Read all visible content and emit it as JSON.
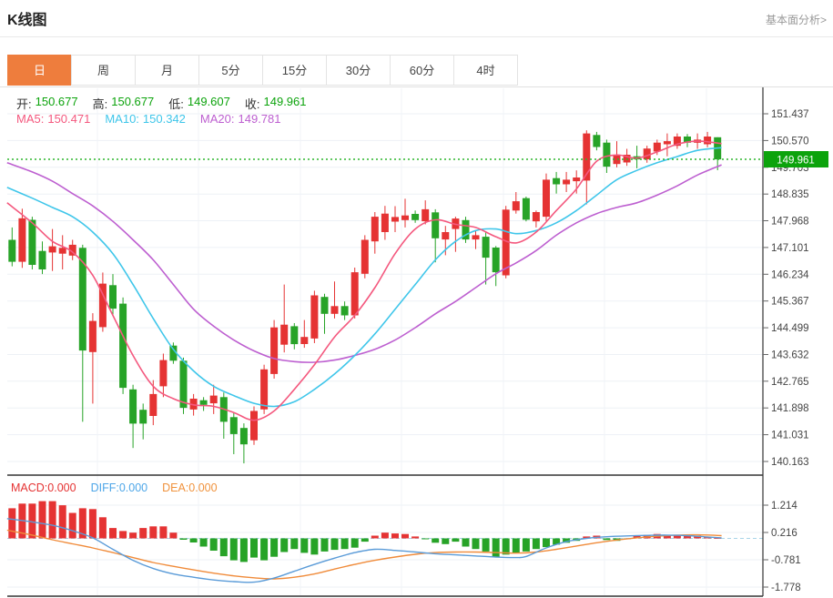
{
  "header": {
    "title": "K线图",
    "link": "基本面分析>"
  },
  "tabs": {
    "items": [
      "日",
      "周",
      "月",
      "5分",
      "15分",
      "30分",
      "60分",
      "4时"
    ],
    "active_index": 0
  },
  "legend": {
    "open_label": "开:",
    "open": "150.677",
    "high_label": "高:",
    "high": "150.677",
    "low_label": "低:",
    "low": "149.607",
    "close_label": "收:",
    "close": "149.961",
    "ma5_label": "MA5:",
    "ma5": "150.471",
    "ma10_label": "MA10:",
    "ma10": "150.342",
    "ma20_label": "MA20:",
    "ma20": "149.781"
  },
  "macd_legend": {
    "macd_label": "MACD:",
    "macd": "0.000",
    "diff_label": "DIFF:",
    "diff": "0.000",
    "dea_label": "DEA:",
    "dea": "0.000"
  },
  "price_marker": {
    "value": "149.961",
    "price": 149.961
  },
  "colors": {
    "up": "#e53333",
    "down": "#27a327",
    "ma5": "#f4587e",
    "ma10": "#3fc6ea",
    "ma20": "#bd5fd0",
    "diff_line": "#5a9bd8",
    "dea_line": "#f08b3a",
    "accent_tab": "#ee7d3d",
    "price_badge": "#0ca30c",
    "dotted_price_line": "#2db52d",
    "grid": "#edf1f6",
    "axis_line": "#333333",
    "axis_text": "#444444",
    "zero_dash": "#a8d4e8"
  },
  "chart_data": {
    "type": "candlestick+macd",
    "main": {
      "y_ticks": [
        "151.437",
        "150.570",
        "149.703",
        "148.835",
        "147.968",
        "147.101",
        "146.234",
        "145.367",
        "144.499",
        "143.632",
        "142.765",
        "141.898",
        "141.031",
        "140.163"
      ],
      "current_price": 149.961,
      "candles": [
        [
          147.35,
          147.75,
          146.49,
          146.64
        ],
        [
          146.64,
          148.36,
          146.44,
          148.05
        ],
        [
          148.0,
          148.1,
          146.39,
          146.54
        ],
        [
          146.99,
          147.3,
          146.24,
          146.39
        ],
        [
          146.94,
          147.7,
          146.34,
          147.14
        ],
        [
          146.9,
          147.5,
          146.39,
          147.09
        ],
        [
          146.84,
          147.35,
          146.69,
          147.19
        ],
        [
          147.09,
          147.19,
          141.45,
          143.76
        ],
        [
          143.71,
          144.97,
          142.04,
          144.72
        ],
        [
          144.52,
          146.29,
          144.37,
          145.93
        ],
        [
          145.88,
          146.24,
          144.87,
          145.12
        ],
        [
          145.28,
          145.48,
          142.35,
          142.55
        ],
        [
          142.5,
          142.65,
          140.6,
          141.39
        ],
        [
          141.84,
          142.04,
          140.88,
          141.39
        ],
        [
          141.64,
          142.8,
          141.34,
          142.35
        ],
        [
          142.6,
          143.66,
          142.25,
          143.45
        ],
        [
          143.92,
          144.02,
          143.33,
          143.43
        ],
        [
          143.43,
          143.53,
          141.7,
          141.9
        ],
        [
          141.85,
          142.35,
          141.65,
          142.2
        ],
        [
          142.15,
          142.25,
          141.8,
          142.0
        ],
        [
          142.05,
          142.65,
          141.7,
          142.3
        ],
        [
          142.25,
          142.4,
          140.9,
          141.45
        ],
        [
          141.6,
          141.75,
          140.4,
          141.05
        ],
        [
          141.25,
          141.4,
          140.1,
          140.72
        ],
        [
          140.85,
          141.95,
          140.7,
          141.8
        ],
        [
          141.85,
          143.3,
          141.7,
          143.15
        ],
        [
          143.0,
          144.75,
          142.85,
          144.51
        ],
        [
          143.95,
          145.9,
          143.7,
          144.6
        ],
        [
          144.55,
          144.65,
          143.8,
          143.97
        ],
        [
          143.97,
          144.75,
          143.85,
          144.2
        ],
        [
          144.15,
          145.7,
          144.0,
          145.55
        ],
        [
          145.5,
          145.6,
          144.3,
          144.95
        ],
        [
          144.95,
          146.0,
          144.8,
          145.2
        ],
        [
          145.2,
          145.35,
          144.75,
          144.9
        ],
        [
          144.9,
          146.45,
          144.8,
          146.3
        ],
        [
          146.25,
          147.5,
          146.1,
          147.35
        ],
        [
          147.3,
          148.25,
          146.9,
          148.1
        ],
        [
          147.6,
          148.45,
          147.35,
          148.2
        ],
        [
          147.94,
          148.44,
          147.6,
          148.09
        ],
        [
          147.99,
          148.68,
          147.75,
          148.14
        ],
        [
          148.19,
          148.3,
          147.9,
          147.99
        ],
        [
          147.95,
          148.63,
          147.85,
          148.34
        ],
        [
          148.24,
          148.34,
          146.62,
          147.4
        ],
        [
          147.36,
          147.8,
          146.85,
          147.6
        ],
        [
          147.7,
          148.1,
          146.96,
          148.04
        ],
        [
          147.99,
          148.1,
          147.25,
          147.36
        ],
        [
          147.36,
          147.65,
          147.05,
          147.5
        ],
        [
          147.45,
          147.6,
          145.9,
          146.77
        ],
        [
          147.1,
          147.15,
          145.85,
          146.3
        ],
        [
          146.2,
          148.45,
          146.1,
          148.33
        ],
        [
          148.3,
          148.9,
          148.2,
          148.6
        ],
        [
          148.7,
          148.75,
          147.95,
          148.0
        ],
        [
          147.95,
          148.3,
          147.75,
          148.25
        ],
        [
          148.1,
          149.5,
          147.95,
          149.3
        ],
        [
          149.35,
          149.55,
          148.85,
          149.15
        ],
        [
          149.15,
          149.55,
          148.9,
          149.3
        ],
        [
          149.25,
          149.6,
          148.85,
          149.37
        ],
        [
          149.27,
          150.9,
          148.5,
          150.8
        ],
        [
          150.75,
          150.85,
          150.25,
          150.36
        ],
        [
          150.5,
          150.6,
          149.52,
          149.72
        ],
        [
          149.81,
          150.55,
          149.7,
          150.11
        ],
        [
          149.86,
          150.3,
          149.75,
          150.11
        ],
        [
          150.06,
          150.4,
          149.67,
          149.96
        ],
        [
          149.96,
          150.4,
          149.85,
          150.31
        ],
        [
          150.21,
          150.6,
          150.1,
          150.5
        ],
        [
          150.45,
          150.8,
          150.06,
          150.55
        ],
        [
          150.4,
          150.8,
          150.3,
          150.7
        ],
        [
          150.7,
          150.78,
          150.35,
          150.5
        ],
        [
          150.5,
          150.8,
          150.3,
          150.6
        ],
        [
          150.45,
          150.85,
          150.35,
          150.7
        ],
        [
          150.677,
          150.677,
          149.607,
          149.961
        ]
      ],
      "ma5_points": [
        [
          -0.5,
          148.55
        ],
        [
          2,
          147.9
        ],
        [
          4,
          147.3
        ],
        [
          6,
          146.95
        ],
        [
          8,
          146.2
        ],
        [
          10,
          144.9
        ],
        [
          12,
          143.6
        ],
        [
          14,
          142.6
        ],
        [
          16,
          142.2
        ],
        [
          18,
          142.0
        ],
        [
          20,
          141.95
        ],
        [
          22,
          141.75
        ],
        [
          24,
          141.5
        ],
        [
          26,
          141.8
        ],
        [
          28,
          142.5
        ],
        [
          30,
          143.3
        ],
        [
          32,
          144.2
        ],
        [
          34,
          144.9
        ],
        [
          36,
          145.8
        ],
        [
          38,
          146.9
        ],
        [
          40,
          147.7
        ],
        [
          42,
          148.0
        ],
        [
          44,
          147.85
        ],
        [
          46,
          147.75
        ],
        [
          48,
          147.45
        ],
        [
          50,
          147.25
        ],
        [
          52,
          147.6
        ],
        [
          54,
          148.3
        ],
        [
          56,
          149.0
        ],
        [
          58,
          149.9
        ],
        [
          60,
          150.1
        ],
        [
          62,
          150.0
        ],
        [
          64,
          150.2
        ],
        [
          66,
          150.45
        ],
        [
          68,
          150.55
        ],
        [
          70.4,
          150.47
        ]
      ],
      "ma10_points": [
        [
          -0.5,
          149.05
        ],
        [
          2,
          148.7
        ],
        [
          4,
          148.4
        ],
        [
          6,
          148.1
        ],
        [
          8,
          147.6
        ],
        [
          10,
          146.9
        ],
        [
          12,
          145.9
        ],
        [
          14,
          144.8
        ],
        [
          16,
          143.8
        ],
        [
          18,
          143.1
        ],
        [
          20,
          142.6
        ],
        [
          22,
          142.3
        ],
        [
          24,
          142.05
        ],
        [
          26,
          141.95
        ],
        [
          28,
          142.1
        ],
        [
          30,
          142.5
        ],
        [
          32,
          143.0
        ],
        [
          34,
          143.6
        ],
        [
          36,
          144.3
        ],
        [
          38,
          145.1
        ],
        [
          40,
          145.9
        ],
        [
          42,
          146.7
        ],
        [
          44,
          147.3
        ],
        [
          46,
          147.65
        ],
        [
          48,
          147.7
        ],
        [
          50,
          147.55
        ],
        [
          52,
          147.65
        ],
        [
          54,
          147.9
        ],
        [
          56,
          148.3
        ],
        [
          58,
          148.8
        ],
        [
          60,
          149.3
        ],
        [
          62,
          149.6
        ],
        [
          64,
          149.85
        ],
        [
          66,
          150.05
        ],
        [
          68,
          150.25
        ],
        [
          70.4,
          150.34
        ]
      ],
      "ma20_points": [
        [
          -0.5,
          149.85
        ],
        [
          2,
          149.55
        ],
        [
          4,
          149.25
        ],
        [
          6,
          148.85
        ],
        [
          8,
          148.45
        ],
        [
          10,
          147.95
        ],
        [
          12,
          147.35
        ],
        [
          14,
          146.7
        ],
        [
          16,
          145.9
        ],
        [
          18,
          145.1
        ],
        [
          20,
          144.55
        ],
        [
          22,
          144.1
        ],
        [
          24,
          143.75
        ],
        [
          26,
          143.5
        ],
        [
          28,
          143.4
        ],
        [
          30,
          143.38
        ],
        [
          32,
          143.45
        ],
        [
          34,
          143.6
        ],
        [
          36,
          143.8
        ],
        [
          38,
          144.1
        ],
        [
          40,
          144.5
        ],
        [
          42,
          144.95
        ],
        [
          44,
          145.35
        ],
        [
          46,
          145.8
        ],
        [
          48,
          146.25
        ],
        [
          50,
          146.6
        ],
        [
          52,
          147.0
        ],
        [
          54,
          147.5
        ],
        [
          56,
          147.9
        ],
        [
          58,
          148.2
        ],
        [
          60,
          148.4
        ],
        [
          62,
          148.55
        ],
        [
          64,
          148.8
        ],
        [
          66,
          149.1
        ],
        [
          68,
          149.45
        ],
        [
          70.4,
          149.78
        ]
      ]
    },
    "macd": {
      "y_ticks": [
        "1.214",
        "0.216",
        "-0.781",
        "-1.778"
      ],
      "histogram": [
        1.1,
        1.27,
        1.27,
        1.36,
        1.36,
        1.21,
        0.93,
        1.1,
        1.07,
        0.77,
        0.38,
        0.27,
        0.21,
        0.38,
        0.44,
        0.44,
        0.21,
        -0.05,
        -0.15,
        -0.3,
        -0.45,
        -0.65,
        -0.8,
        -0.86,
        -0.7,
        -0.8,
        -0.67,
        -0.5,
        -0.39,
        -0.53,
        -0.59,
        -0.48,
        -0.42,
        -0.39,
        -0.34,
        -0.12,
        0.1,
        0.21,
        0.18,
        0.16,
        0.07,
        -0.02,
        -0.16,
        -0.21,
        -0.12,
        -0.3,
        -0.39,
        -0.48,
        -0.67,
        -0.59,
        -0.53,
        -0.48,
        -0.39,
        -0.32,
        -0.23,
        -0.16,
        -0.09,
        0.07,
        0.1,
        -0.06,
        -0.09,
        -0.03,
        0.1,
        0.13,
        0.16,
        0.13,
        0.12,
        0.13,
        0.1,
        0.05,
        0.02
      ],
      "diff_points": [
        [
          -0.5,
          0.72
        ],
        [
          2,
          0.6
        ],
        [
          4,
          0.48
        ],
        [
          6,
          0.28
        ],
        [
          8,
          0.02
        ],
        [
          10,
          -0.4
        ],
        [
          12,
          -0.8
        ],
        [
          14,
          -1.1
        ],
        [
          16,
          -1.3
        ],
        [
          18,
          -1.42
        ],
        [
          20,
          -1.52
        ],
        [
          22,
          -1.58
        ],
        [
          24,
          -1.6
        ],
        [
          26,
          -1.45
        ],
        [
          28,
          -1.2
        ],
        [
          30,
          -0.95
        ],
        [
          32,
          -0.72
        ],
        [
          34,
          -0.52
        ],
        [
          36,
          -0.4
        ],
        [
          38,
          -0.44
        ],
        [
          40,
          -0.5
        ],
        [
          42,
          -0.56
        ],
        [
          44,
          -0.6
        ],
        [
          46,
          -0.64
        ],
        [
          48,
          -0.68
        ],
        [
          50,
          -0.7
        ],
        [
          51,
          -0.66
        ],
        [
          53,
          -0.35
        ],
        [
          55,
          -0.12
        ],
        [
          57,
          0.0
        ],
        [
          59,
          0.06
        ],
        [
          61,
          0.09
        ],
        [
          63,
          0.11
        ],
        [
          65,
          0.12
        ],
        [
          67,
          0.1
        ],
        [
          69,
          0.05
        ],
        [
          70.4,
          0.02
        ]
      ],
      "dea_points": [
        [
          -0.5,
          0.3
        ],
        [
          2,
          0.12
        ],
        [
          4,
          -0.05
        ],
        [
          6,
          -0.2
        ],
        [
          8,
          -0.35
        ],
        [
          10,
          -0.52
        ],
        [
          12,
          -0.7
        ],
        [
          14,
          -0.88
        ],
        [
          16,
          -1.02
        ],
        [
          18,
          -1.15
        ],
        [
          20,
          -1.27
        ],
        [
          22,
          -1.37
        ],
        [
          24,
          -1.44
        ],
        [
          26,
          -1.48
        ],
        [
          28,
          -1.42
        ],
        [
          30,
          -1.3
        ],
        [
          32,
          -1.12
        ],
        [
          34,
          -0.95
        ],
        [
          36,
          -0.8
        ],
        [
          38,
          -0.68
        ],
        [
          40,
          -0.58
        ],
        [
          42,
          -0.52
        ],
        [
          44,
          -0.5
        ],
        [
          46,
          -0.5
        ],
        [
          48,
          -0.52
        ],
        [
          50,
          -0.54
        ],
        [
          52,
          -0.5
        ],
        [
          54,
          -0.4
        ],
        [
          56,
          -0.28
        ],
        [
          58,
          -0.16
        ],
        [
          60,
          -0.06
        ],
        [
          62,
          0.02
        ],
        [
          64,
          0.08
        ],
        [
          66,
          0.12
        ],
        [
          68,
          0.13
        ],
        [
          70.4,
          0.1
        ]
      ]
    }
  }
}
